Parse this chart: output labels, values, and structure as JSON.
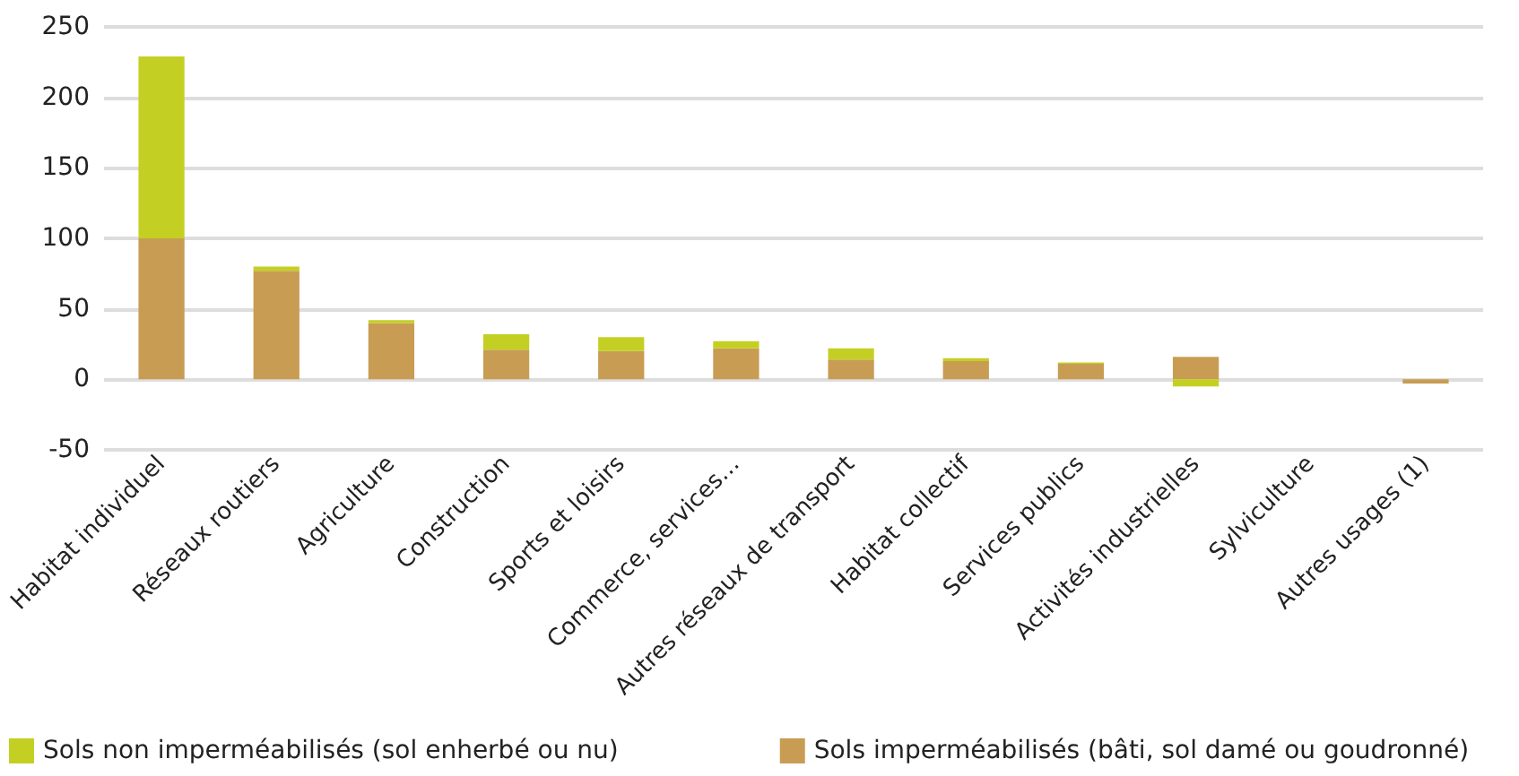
{
  "chart_data": {
    "type": "bar",
    "stacked": true,
    "categories": [
      "Habitat individuel",
      "Réseaux routiers",
      "Agriculture",
      "Construction",
      "Sports et loisirs",
      "Commerce, services…",
      "Autres réseaux de transport",
      "Habitat collectif",
      "Services publics",
      "Activités industrielles",
      "Sylviculture",
      "Autres usages (1)"
    ],
    "series": [
      {
        "name": "Sols imperméabilisés (bâti, sol damé ou goudronné)",
        "color": "#c89c52",
        "values": [
          100,
          77,
          40,
          21,
          20,
          22,
          14,
          13,
          11,
          16,
          0,
          -3
        ]
      },
      {
        "name": "Sols non imperméabilisés (sol enherbé ou nu)",
        "color": "#c3d023",
        "values": [
          129,
          3,
          2,
          11,
          10,
          5,
          8,
          2,
          1,
          -5,
          0,
          0
        ]
      }
    ],
    "ylim": [
      -50,
      250
    ],
    "yticks": [
      -50,
      0,
      50,
      100,
      150,
      200,
      250
    ],
    "grid": "y",
    "legend": "bottom"
  }
}
